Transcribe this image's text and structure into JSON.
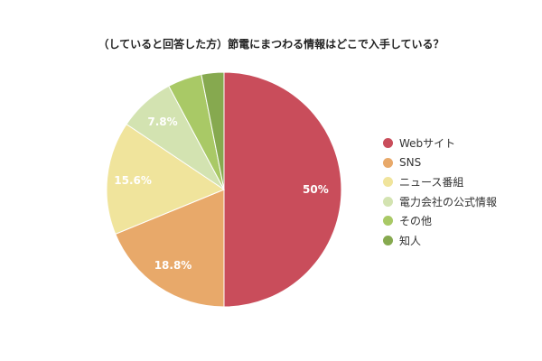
{
  "chart_data": {
    "type": "pie",
    "title": "（していると回答した方）節電にまつわる情報はどこで入手している？",
    "slices": [
      {
        "name": "Webサイト",
        "value": 50.0,
        "label": "50%",
        "color": "#c94d5b"
      },
      {
        "name": "SNS",
        "value": 18.8,
        "label": "18.8%",
        "color": "#e8a96a"
      },
      {
        "name": "ニュース番組",
        "value": 15.6,
        "label": "15.6%",
        "color": "#f0e49c"
      },
      {
        "name": "電力会社の公式情報",
        "value": 7.8,
        "label": "7.8%",
        "color": "#d3e3b1"
      },
      {
        "name": "その他",
        "value": 4.7,
        "label": "",
        "color": "#a9c966"
      },
      {
        "name": "知人",
        "value": 3.1,
        "label": "",
        "color": "#86a94f"
      }
    ],
    "legend_position": "right"
  }
}
